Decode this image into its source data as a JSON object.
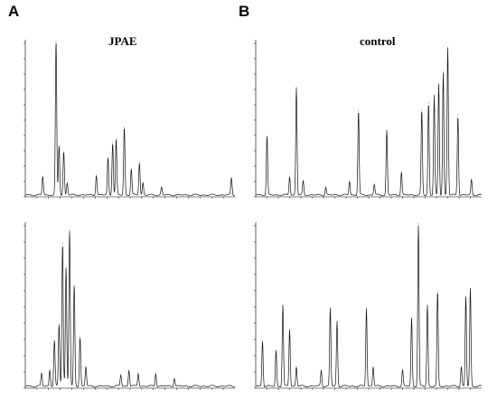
{
  "figure": {
    "panel_a_letter": "A",
    "panel_b_letter": "B",
    "panel_a_title": "JPAE",
    "panel_b_title": "control"
  },
  "chart_data": [
    {
      "type": "line",
      "title": "JPAE",
      "panel": "A-top",
      "xlim": [
        0,
        9
      ],
      "ylim": [
        0,
        100
      ],
      "x_ticks": [
        0.5,
        1.0,
        1.5,
        2.0,
        2.5,
        3.0,
        3.5,
        4.0,
        4.5,
        5.0,
        5.5,
        6.0,
        6.5,
        7.0,
        7.5,
        8.0,
        8.5
      ],
      "peaks": [
        {
          "rt": 0.75,
          "height": 12
        },
        {
          "rt": 1.32,
          "height": 100
        },
        {
          "rt": 1.45,
          "height": 32
        },
        {
          "rt": 1.65,
          "height": 28
        },
        {
          "rt": 1.8,
          "height": 8
        },
        {
          "rt": 3.05,
          "height": 13
        },
        {
          "rt": 3.55,
          "height": 24
        },
        {
          "rt": 3.75,
          "height": 34
        },
        {
          "rt": 3.9,
          "height": 36
        },
        {
          "rt": 4.25,
          "height": 44
        },
        {
          "rt": 4.55,
          "height": 17
        },
        {
          "rt": 4.9,
          "height": 21
        },
        {
          "rt": 5.05,
          "height": 8
        },
        {
          "rt": 5.85,
          "height": 5
        },
        {
          "rt": 8.85,
          "height": 11
        }
      ]
    },
    {
      "type": "line",
      "title": "JPAE",
      "panel": "A-bottom",
      "xlim": [
        0,
        9
      ],
      "ylim": [
        0,
        100
      ],
      "x_ticks": [
        0.5,
        1.0,
        1.5,
        2.0,
        2.5,
        3.0,
        3.5,
        4.0,
        4.5,
        5.0,
        5.5,
        6.0,
        6.5,
        7.0,
        7.5,
        8.0,
        8.5
      ],
      "peaks": [
        {
          "rt": 0.7,
          "height": 8
        },
        {
          "rt": 1.05,
          "height": 10
        },
        {
          "rt": 1.25,
          "height": 28
        },
        {
          "rt": 1.45,
          "height": 38
        },
        {
          "rt": 1.6,
          "height": 88
        },
        {
          "rt": 1.75,
          "height": 73
        },
        {
          "rt": 1.9,
          "height": 96
        },
        {
          "rt": 2.1,
          "height": 62
        },
        {
          "rt": 2.35,
          "height": 30
        },
        {
          "rt": 2.6,
          "height": 12
        },
        {
          "rt": 4.1,
          "height": 7
        },
        {
          "rt": 4.45,
          "height": 10
        },
        {
          "rt": 4.85,
          "height": 8
        },
        {
          "rt": 5.6,
          "height": 8
        },
        {
          "rt": 6.4,
          "height": 5
        }
      ]
    },
    {
      "type": "line",
      "title": "control",
      "panel": "B-top",
      "xlim": [
        0,
        10
      ],
      "ylim": [
        0,
        100
      ],
      "x_ticks": [
        0.5,
        1.0,
        1.5,
        2.0,
        2.5,
        3.0,
        3.5,
        4.0,
        4.5,
        5.0,
        5.5,
        6.0,
        6.5,
        7.0,
        7.5,
        8.0,
        8.5,
        9.0,
        9.5
      ],
      "peaks": [
        {
          "rt": 0.5,
          "height": 38
        },
        {
          "rt": 1.5,
          "height": 12
        },
        {
          "rt": 1.8,
          "height": 70
        },
        {
          "rt": 2.1,
          "height": 9
        },
        {
          "rt": 3.1,
          "height": 5
        },
        {
          "rt": 4.15,
          "height": 9
        },
        {
          "rt": 4.55,
          "height": 55
        },
        {
          "rt": 5.25,
          "height": 7
        },
        {
          "rt": 5.8,
          "height": 42
        },
        {
          "rt": 6.45,
          "height": 15
        },
        {
          "rt": 7.35,
          "height": 55
        },
        {
          "rt": 7.65,
          "height": 60
        },
        {
          "rt": 7.9,
          "height": 65
        },
        {
          "rt": 8.1,
          "height": 72
        },
        {
          "rt": 8.3,
          "height": 80
        },
        {
          "rt": 8.5,
          "height": 96
        },
        {
          "rt": 8.95,
          "height": 52
        },
        {
          "rt": 9.55,
          "height": 10
        }
      ]
    },
    {
      "type": "line",
      "title": "control",
      "panel": "B-bottom",
      "xlim": [
        0,
        10
      ],
      "ylim": [
        0,
        100
      ],
      "x_ticks": [
        0.5,
        1.0,
        1.5,
        2.0,
        2.5,
        3.0,
        3.5,
        4.0,
        4.5,
        5.0,
        5.5,
        6.0,
        6.5,
        7.0,
        7.5,
        8.0,
        8.5,
        9.0,
        9.5
      ],
      "peaks": [
        {
          "rt": 0.3,
          "height": 28
        },
        {
          "rt": 0.9,
          "height": 22
        },
        {
          "rt": 1.2,
          "height": 50
        },
        {
          "rt": 1.5,
          "height": 35
        },
        {
          "rt": 1.8,
          "height": 12
        },
        {
          "rt": 2.9,
          "height": 10
        },
        {
          "rt": 3.3,
          "height": 48
        },
        {
          "rt": 3.6,
          "height": 40
        },
        {
          "rt": 4.9,
          "height": 48
        },
        {
          "rt": 5.2,
          "height": 12
        },
        {
          "rt": 6.5,
          "height": 10
        },
        {
          "rt": 6.9,
          "height": 42
        },
        {
          "rt": 7.2,
          "height": 100
        },
        {
          "rt": 7.6,
          "height": 50
        },
        {
          "rt": 8.05,
          "height": 58
        },
        {
          "rt": 9.1,
          "height": 12
        },
        {
          "rt": 9.3,
          "height": 55
        },
        {
          "rt": 9.5,
          "height": 60
        }
      ]
    }
  ]
}
